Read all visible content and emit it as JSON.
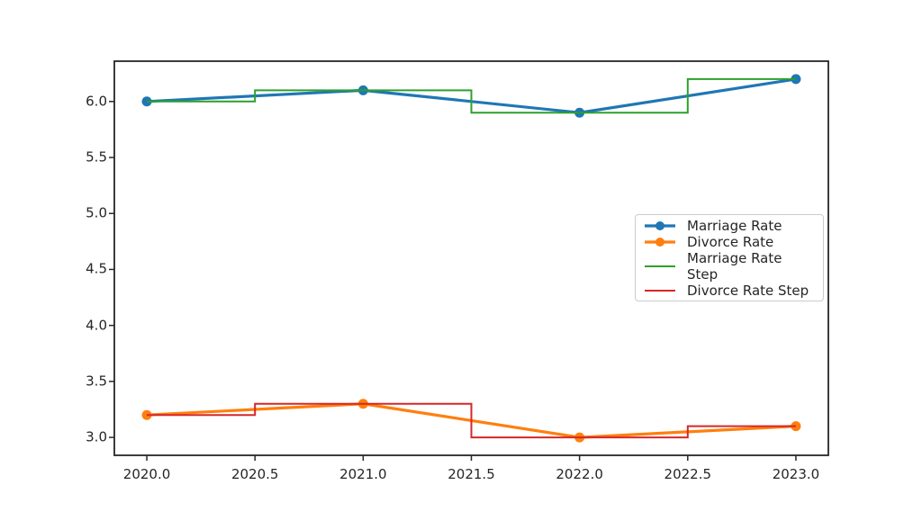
{
  "chart_data": {
    "type": "line",
    "x": [
      2020,
      2021,
      2022,
      2023
    ],
    "series": [
      {
        "name": "Marriage Rate",
        "values": [
          6.0,
          6.1,
          5.9,
          6.2
        ],
        "color": "#1f77b4",
        "style": "line-marker"
      },
      {
        "name": "Divorce Rate",
        "values": [
          3.2,
          3.3,
          3.0,
          3.1
        ],
        "color": "#ff7f0e",
        "style": "line-marker"
      },
      {
        "name": "Marriage Rate Step",
        "values": [
          6.0,
          6.1,
          5.9,
          6.2
        ],
        "color": "#2ca02c",
        "style": "step-mid"
      },
      {
        "name": "Divorce Rate Step",
        "values": [
          3.2,
          3.3,
          3.0,
          3.1
        ],
        "color": "#d62728",
        "style": "step-mid"
      }
    ],
    "title": "",
    "xlabel": "",
    "ylabel": "",
    "xlim": [
      2019.85,
      2023.15
    ],
    "ylim": [
      2.84,
      6.36
    ],
    "x_ticks": [
      2020.0,
      2020.5,
      2021.0,
      2021.5,
      2022.0,
      2022.5,
      2023.0
    ],
    "x_tick_labels": [
      "2020.0",
      "2020.5",
      "2021.0",
      "2021.5",
      "2022.0",
      "2022.5",
      "2023.0"
    ],
    "y_ticks": [
      3.0,
      3.5,
      4.0,
      4.5,
      5.0,
      5.5,
      6.0
    ],
    "y_tick_labels": [
      "3.0",
      "3.5",
      "4.0",
      "4.5",
      "5.0",
      "5.5",
      "6.0"
    ],
    "grid": false,
    "legend": {
      "position": "center-right",
      "entries": [
        "Marriage Rate",
        "Divorce Rate",
        "Marriage Rate Step",
        "Divorce Rate Step"
      ]
    }
  },
  "colors": {
    "background": "#ffffff",
    "axes": "#262626",
    "tick_text": "#262626",
    "legend_border": "#cccccc"
  }
}
